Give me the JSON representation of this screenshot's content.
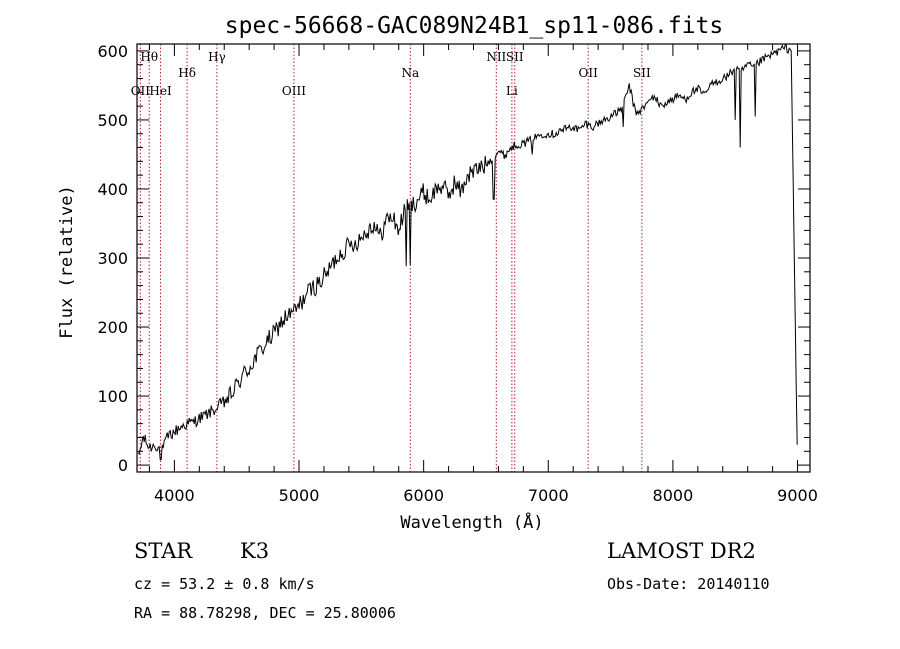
{
  "chart_data": {
    "type": "line",
    "title": "spec-56668-GAC089N24B1_sp11-086.fits",
    "xlabel": "Wavelength (Å)",
    "ylabel": "Flux (relative)",
    "xlim": [
      3700,
      9100
    ],
    "ylim": [
      -10,
      610
    ],
    "xticks": [
      4000,
      5000,
      6000,
      7000,
      8000,
      9000
    ],
    "yticks": [
      0,
      100,
      200,
      300,
      400,
      500,
      600
    ],
    "grid": false,
    "line_color": "#000000",
    "marker_color": "#b22222",
    "series": [
      {
        "x": [
          3710,
          3750,
          3800,
          3850,
          3900,
          3950,
          4000,
          4050,
          4100,
          4150,
          4200,
          4250,
          4300,
          4350,
          4400,
          4450,
          4500,
          4550,
          4600,
          4650,
          4700,
          4750,
          4800,
          4850,
          4900,
          4950,
          5000,
          5050,
          5100,
          5150,
          5200,
          5250,
          5300,
          5350,
          5400,
          5450,
          5500,
          5550,
          5600,
          5650,
          5700,
          5750,
          5800,
          5850,
          5900,
          5950,
          6000,
          6050,
          6100,
          6150,
          6200,
          6250,
          6300,
          6350,
          6400,
          6450,
          6500,
          6550,
          6600,
          6650,
          6700,
          6750,
          6800,
          6850,
          6900,
          6950,
          7000,
          7050,
          7100,
          7150,
          7200,
          7250,
          7300,
          7350,
          7400,
          7450,
          7500,
          7550,
          7600,
          7650,
          7700,
          7750,
          7800,
          7850,
          7900,
          7950,
          8000,
          8050,
          8100,
          8150,
          8200,
          8250,
          8300,
          8350,
          8400,
          8450,
          8500,
          8550,
          8600,
          8650,
          8700,
          8750,
          8800,
          8850,
          8900,
          8950,
          8990,
          9000
        ],
        "y": [
          10,
          40,
          25,
          30,
          20,
          42,
          48,
          55,
          60,
          62,
          68,
          72,
          78,
          85,
          92,
          100,
          115,
          130,
          140,
          155,
          168,
          180,
          190,
          205,
          215,
          220,
          230,
          245,
          255,
          262,
          272,
          285,
          300,
          310,
          318,
          322,
          330,
          340,
          350,
          330,
          355,
          360,
          340,
          370,
          375,
          385,
          395,
          385,
          400,
          405,
          390,
          410,
          395,
          420,
          425,
          430,
          435,
          445,
          455,
          448,
          460,
          465,
          465,
          470,
          475,
          480,
          480,
          480,
          485,
          488,
          490,
          485,
          495,
          490,
          495,
          500,
          505,
          510,
          520,
          550,
          510,
          515,
          525,
          535,
          520,
          525,
          530,
          535,
          530,
          540,
          545,
          535,
          550,
          555,
          560,
          565,
          575,
          570,
          580,
          575,
          585,
          590,
          595,
          600,
          605,
          600,
          110,
          5
        ],
        "dips": [
          {
            "x": 3890,
            "y": 8
          },
          {
            "x": 4340,
            "y": 80
          },
          {
            "x": 5860,
            "y": 288
          },
          {
            "x": 5893,
            "y": 290
          },
          {
            "x": 6563,
            "y": 385
          },
          {
            "x": 6870,
            "y": 450
          },
          {
            "x": 7600,
            "y": 490
          },
          {
            "x": 8500,
            "y": 500
          },
          {
            "x": 8542,
            "y": 460
          },
          {
            "x": 8662,
            "y": 505
          }
        ]
      }
    ],
    "line_markers": [
      {
        "x": 3727,
        "label": "OII",
        "row": 2
      },
      {
        "x": 3798,
        "label": "Hθ",
        "row": 0
      },
      {
        "x": 3889,
        "label": "HeI",
        "row": 2
      },
      {
        "x": 4102,
        "label": "Hδ",
        "row": 1
      },
      {
        "x": 4341,
        "label": "Hγ",
        "row": 0
      },
      {
        "x": 4959,
        "label": "OIII",
        "row": 2
      },
      {
        "x": 5893,
        "label": "Na",
        "row": 1
      },
      {
        "x": 6583,
        "label": "NII",
        "row": 0
      },
      {
        "x": 6708,
        "label": "Li",
        "row": 2
      },
      {
        "x": 6731,
        "label": "SII",
        "row": 0
      },
      {
        "x": 7320,
        "label": "OII",
        "row": 1
      },
      {
        "x": 7751,
        "label": "SII",
        "row": 1
      }
    ]
  },
  "info": {
    "class": "STAR",
    "subclass": "K3",
    "survey": "LAMOST DR2",
    "cz": "cz = 53.2 ± 0.8 km/s",
    "obsdate": "Obs-Date: 20140110",
    "coords": "RA =  88.78298, DEC =  25.80006"
  }
}
